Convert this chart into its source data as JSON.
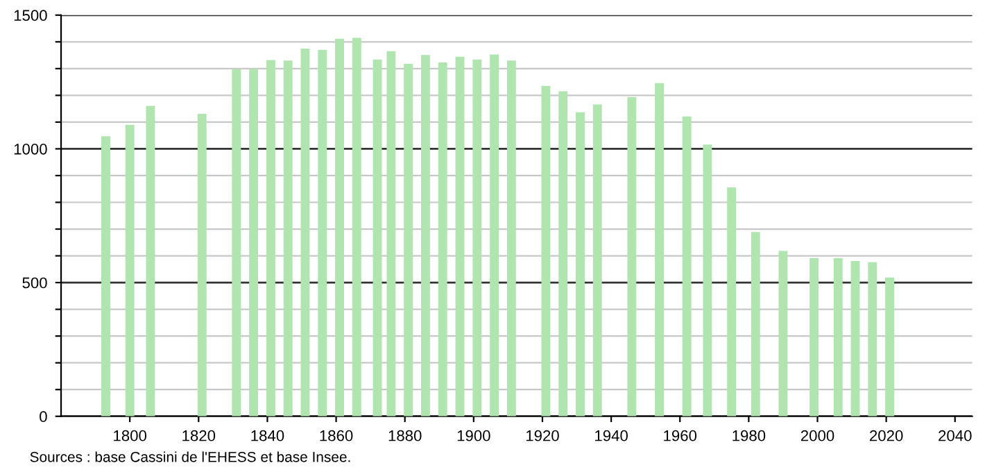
{
  "chart_data": {
    "type": "bar",
    "x": [
      1793,
      1800,
      1806,
      1821,
      1831,
      1836,
      1841,
      1846,
      1851,
      1856,
      1861,
      1866,
      1872,
      1876,
      1881,
      1886,
      1891,
      1896,
      1901,
      1906,
      1911,
      1921,
      1926,
      1931,
      1936,
      1946,
      1954,
      1962,
      1968,
      1975,
      1982,
      1990,
      1999,
      2006,
      2011,
      2016,
      2021
    ],
    "values": [
      1047,
      1090,
      1161,
      1131,
      1299,
      1299,
      1332,
      1330,
      1375,
      1370,
      1412,
      1415,
      1334,
      1365,
      1318,
      1351,
      1323,
      1344,
      1334,
      1353,
      1330,
      1235,
      1215,
      1137,
      1166,
      1194,
      1246,
      1121,
      1016,
      856,
      689,
      618,
      592,
      592,
      581,
      576,
      519
    ],
    "color": "#b0e5b0",
    "xlim": [
      1780,
      2045
    ],
    "xticks": [
      1800,
      1820,
      1840,
      1860,
      1880,
      1900,
      1920,
      1940,
      1960,
      1980,
      2000,
      2020,
      2040
    ],
    "ylim": [
      0,
      1500
    ],
    "yticks": [
      0,
      {
        "value": 100,
        "label": null
      },
      {
        "value": 200,
        "label": null
      },
      {
        "value": 300,
        "label": null
      },
      {
        "value": 400,
        "label": null
      },
      500,
      {
        "value": 600,
        "label": null
      },
      {
        "value": 700,
        "label": null
      },
      {
        "value": 800,
        "label": null
      },
      {
        "value": 900,
        "label": null
      },
      1000,
      {
        "value": 1100,
        "label": null
      },
      {
        "value": 1200,
        "label": null
      },
      {
        "value": 1300,
        "label": null
      },
      {
        "value": 1400,
        "label": null
      },
      1500
    ],
    "grid": "y",
    "annotations": [
      "Sources : base Cassini de l'EHESS et base Insee."
    ]
  }
}
